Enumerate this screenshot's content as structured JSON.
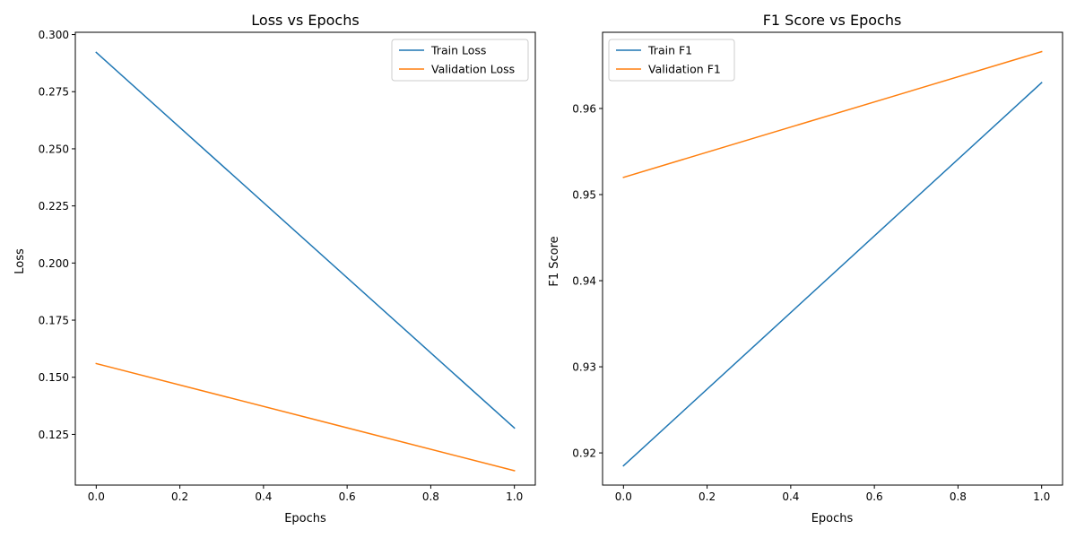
{
  "chart_data": [
    {
      "type": "line",
      "title": "Loss vs Epochs",
      "xlabel": "Epochs",
      "ylabel": "Loss",
      "xlim": [
        -0.05,
        1.05
      ],
      "ylim": [
        0.1028,
        0.301
      ],
      "xticks": [
        0.0,
        0.2,
        0.4,
        0.6,
        0.8,
        1.0
      ],
      "xtick_labels": [
        "0.0",
        "0.2",
        "0.4",
        "0.6",
        "0.8",
        "1.0"
      ],
      "yticks": [
        0.125,
        0.15,
        0.175,
        0.2,
        0.225,
        0.25,
        0.275,
        0.3
      ],
      "ytick_labels": [
        "0.125",
        "0.150",
        "0.175",
        "0.200",
        "0.225",
        "0.250",
        "0.275",
        "0.300"
      ],
      "legend_position": "top-right",
      "grid": false,
      "series": [
        {
          "name": "Train Loss",
          "color": "#1f77b4",
          "x": [
            0,
            1
          ],
          "y": [
            0.2922,
            0.1278
          ]
        },
        {
          "name": "Validation Loss",
          "color": "#ff7f0e",
          "x": [
            0,
            1
          ],
          "y": [
            0.156,
            0.1091
          ]
        }
      ]
    },
    {
      "type": "line",
      "title": "F1 Score vs Epochs",
      "xlabel": "Epochs",
      "ylabel": "F1 Score",
      "xlim": [
        -0.05,
        1.05
      ],
      "ylim": [
        0.91626,
        0.96885
      ],
      "xticks": [
        0.0,
        0.2,
        0.4,
        0.6,
        0.8,
        1.0
      ],
      "xtick_labels": [
        "0.0",
        "0.2",
        "0.4",
        "0.6",
        "0.8",
        "1.0"
      ],
      "yticks": [
        0.92,
        0.93,
        0.94,
        0.95,
        0.96
      ],
      "ytick_labels": [
        "0.92",
        "0.93",
        "0.94",
        "0.95",
        "0.96"
      ],
      "legend_position": "top-left",
      "grid": false,
      "series": [
        {
          "name": "Train F1",
          "color": "#1f77b4",
          "x": [
            0,
            1
          ],
          "y": [
            0.9185,
            0.963
          ]
        },
        {
          "name": "Validation F1",
          "color": "#ff7f0e",
          "x": [
            0,
            1
          ],
          "y": [
            0.952,
            0.9666
          ]
        }
      ]
    }
  ]
}
